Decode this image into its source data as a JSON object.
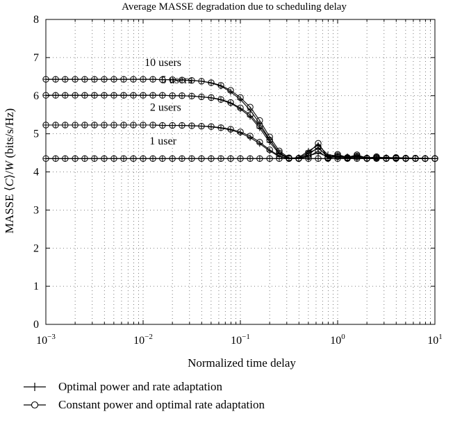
{
  "chart_data": {
    "type": "line",
    "title": "Average MASSE degradation due to scheduling delay",
    "xlabel": "Normalized time delay",
    "ylabel": "MASSE ⟨C⟩/W (bits/s/Hz)",
    "x_scale": "log",
    "xlim": [
      0.001,
      10
    ],
    "ylim": [
      0,
      8
    ],
    "yticks": [
      0,
      1,
      2,
      3,
      4,
      5,
      6,
      7,
      8
    ],
    "xticks": [
      {
        "value": 0.001,
        "base": "10",
        "exp": "−3"
      },
      {
        "value": 0.01,
        "base": "10",
        "exp": "−2"
      },
      {
        "value": 0.1,
        "base": "10",
        "exp": "−1"
      },
      {
        "value": 1,
        "base": "10",
        "exp": "0"
      },
      {
        "value": 10,
        "base": "10",
        "exp": "1"
      }
    ],
    "grid": true,
    "curve_labels": [
      {
        "text": "10 users",
        "x": 0.016,
        "y": 6.78
      },
      {
        "text": "5 users",
        "x": 0.022,
        "y": 6.32
      },
      {
        "text": "2 users",
        "x": 0.017,
        "y": 5.6
      },
      {
        "text": "1 user",
        "x": 0.016,
        "y": 4.72
      }
    ],
    "x": [
      0.001,
      0.00126,
      0.00158,
      0.002,
      0.00251,
      0.00316,
      0.00398,
      0.00501,
      0.00631,
      0.00794,
      0.01,
      0.0126,
      0.0158,
      0.02,
      0.0251,
      0.0316,
      0.0398,
      0.0501,
      0.0631,
      0.0794,
      0.1,
      0.126,
      0.158,
      0.2,
      0.251,
      0.316,
      0.398,
      0.501,
      0.631,
      0.794,
      1.0,
      1.26,
      1.58,
      2.0,
      2.51,
      3.16,
      3.98,
      5.01,
      6.31,
      7.94,
      10.0
    ],
    "series": [
      {
        "group": "10 users",
        "marker": "plus",
        "values": [
          6.43,
          6.43,
          6.43,
          6.43,
          6.43,
          6.43,
          6.43,
          6.43,
          6.43,
          6.43,
          6.43,
          6.43,
          6.42,
          6.42,
          6.41,
          6.4,
          6.38,
          6.33,
          6.25,
          6.1,
          5.9,
          5.62,
          5.27,
          4.85,
          4.5,
          4.35,
          4.38,
          4.55,
          4.7,
          4.45,
          4.42,
          4.4,
          4.42,
          4.38,
          4.37,
          4.38,
          4.37,
          4.37,
          4.36,
          4.36,
          4.35
        ]
      },
      {
        "group": "10 users",
        "marker": "circle",
        "values": [
          6.43,
          6.43,
          6.43,
          6.43,
          6.43,
          6.43,
          6.43,
          6.43,
          6.43,
          6.43,
          6.43,
          6.43,
          6.42,
          6.42,
          6.41,
          6.4,
          6.38,
          6.34,
          6.27,
          6.14,
          5.95,
          5.7,
          5.35,
          4.92,
          4.55,
          4.37,
          4.36,
          4.5,
          4.75,
          4.38,
          4.46,
          4.38,
          4.45,
          4.36,
          4.4,
          4.36,
          4.38,
          4.36,
          4.36,
          4.35,
          4.35
        ]
      },
      {
        "group": "5 users",
        "marker": "plus",
        "values": [
          6.01,
          6.01,
          6.01,
          6.01,
          6.01,
          6.01,
          6.01,
          6.01,
          6.01,
          6.01,
          6.01,
          6.01,
          6.01,
          6.0,
          6.0,
          5.99,
          5.97,
          5.94,
          5.89,
          5.8,
          5.65,
          5.45,
          5.15,
          4.78,
          4.47,
          4.35,
          4.37,
          4.5,
          4.62,
          4.42,
          4.4,
          4.39,
          4.4,
          4.37,
          4.37,
          4.37,
          4.36,
          4.36,
          4.36,
          4.35,
          4.35
        ]
      },
      {
        "group": "5 users",
        "marker": "circle",
        "values": [
          6.01,
          6.01,
          6.01,
          6.01,
          6.01,
          6.01,
          6.01,
          6.01,
          6.01,
          6.01,
          6.01,
          6.01,
          6.01,
          6.0,
          6.0,
          5.99,
          5.97,
          5.95,
          5.9,
          5.82,
          5.68,
          5.5,
          5.2,
          4.84,
          4.5,
          4.36,
          4.35,
          4.45,
          4.65,
          4.37,
          4.43,
          4.37,
          4.42,
          4.36,
          4.38,
          4.36,
          4.37,
          4.36,
          4.35,
          4.35,
          4.35
        ]
      },
      {
        "group": "2 users",
        "marker": "plus",
        "values": [
          5.23,
          5.23,
          5.23,
          5.23,
          5.23,
          5.23,
          5.23,
          5.23,
          5.23,
          5.23,
          5.23,
          5.23,
          5.22,
          5.22,
          5.22,
          5.21,
          5.2,
          5.18,
          5.15,
          5.1,
          5.02,
          4.9,
          4.74,
          4.55,
          4.4,
          4.35,
          4.36,
          4.42,
          4.5,
          4.4,
          4.38,
          4.37,
          4.38,
          4.36,
          4.36,
          4.36,
          4.36,
          4.35,
          4.35,
          4.35,
          4.35
        ]
      },
      {
        "group": "2 users",
        "marker": "circle",
        "values": [
          5.23,
          5.23,
          5.23,
          5.23,
          5.23,
          5.23,
          5.23,
          5.23,
          5.23,
          5.23,
          5.23,
          5.23,
          5.22,
          5.22,
          5.22,
          5.21,
          5.2,
          5.19,
          5.16,
          5.12,
          5.05,
          4.94,
          4.78,
          4.58,
          4.42,
          4.35,
          4.35,
          4.4,
          4.55,
          4.36,
          4.4,
          4.36,
          4.39,
          4.35,
          4.37,
          4.35,
          4.36,
          4.35,
          4.35,
          4.35,
          4.35
        ]
      },
      {
        "group": "1 user",
        "marker": "plus",
        "values": [
          4.35,
          4.35,
          4.35,
          4.35,
          4.35,
          4.35,
          4.35,
          4.35,
          4.35,
          4.35,
          4.35,
          4.35,
          4.35,
          4.35,
          4.35,
          4.35,
          4.35,
          4.35,
          4.35,
          4.35,
          4.35,
          4.35,
          4.35,
          4.35,
          4.35,
          4.35,
          4.35,
          4.35,
          4.35,
          4.35,
          4.35,
          4.35,
          4.35,
          4.35,
          4.35,
          4.35,
          4.35,
          4.35,
          4.35,
          4.35,
          4.35
        ]
      },
      {
        "group": "1 user",
        "marker": "circle",
        "values": [
          4.35,
          4.35,
          4.35,
          4.35,
          4.35,
          4.35,
          4.35,
          4.35,
          4.35,
          4.35,
          4.35,
          4.35,
          4.35,
          4.35,
          4.35,
          4.35,
          4.35,
          4.35,
          4.35,
          4.35,
          4.35,
          4.35,
          4.35,
          4.35,
          4.35,
          4.35,
          4.35,
          4.35,
          4.35,
          4.35,
          4.35,
          4.35,
          4.35,
          4.35,
          4.35,
          4.35,
          4.35,
          4.35,
          4.35,
          4.35,
          4.35
        ]
      }
    ],
    "legend": [
      {
        "marker": "plus",
        "label": "Optimal power and rate adaptation"
      },
      {
        "marker": "circle",
        "label": "Constant power and optimal rate adaptation"
      }
    ],
    "legend_placement": "below"
  }
}
